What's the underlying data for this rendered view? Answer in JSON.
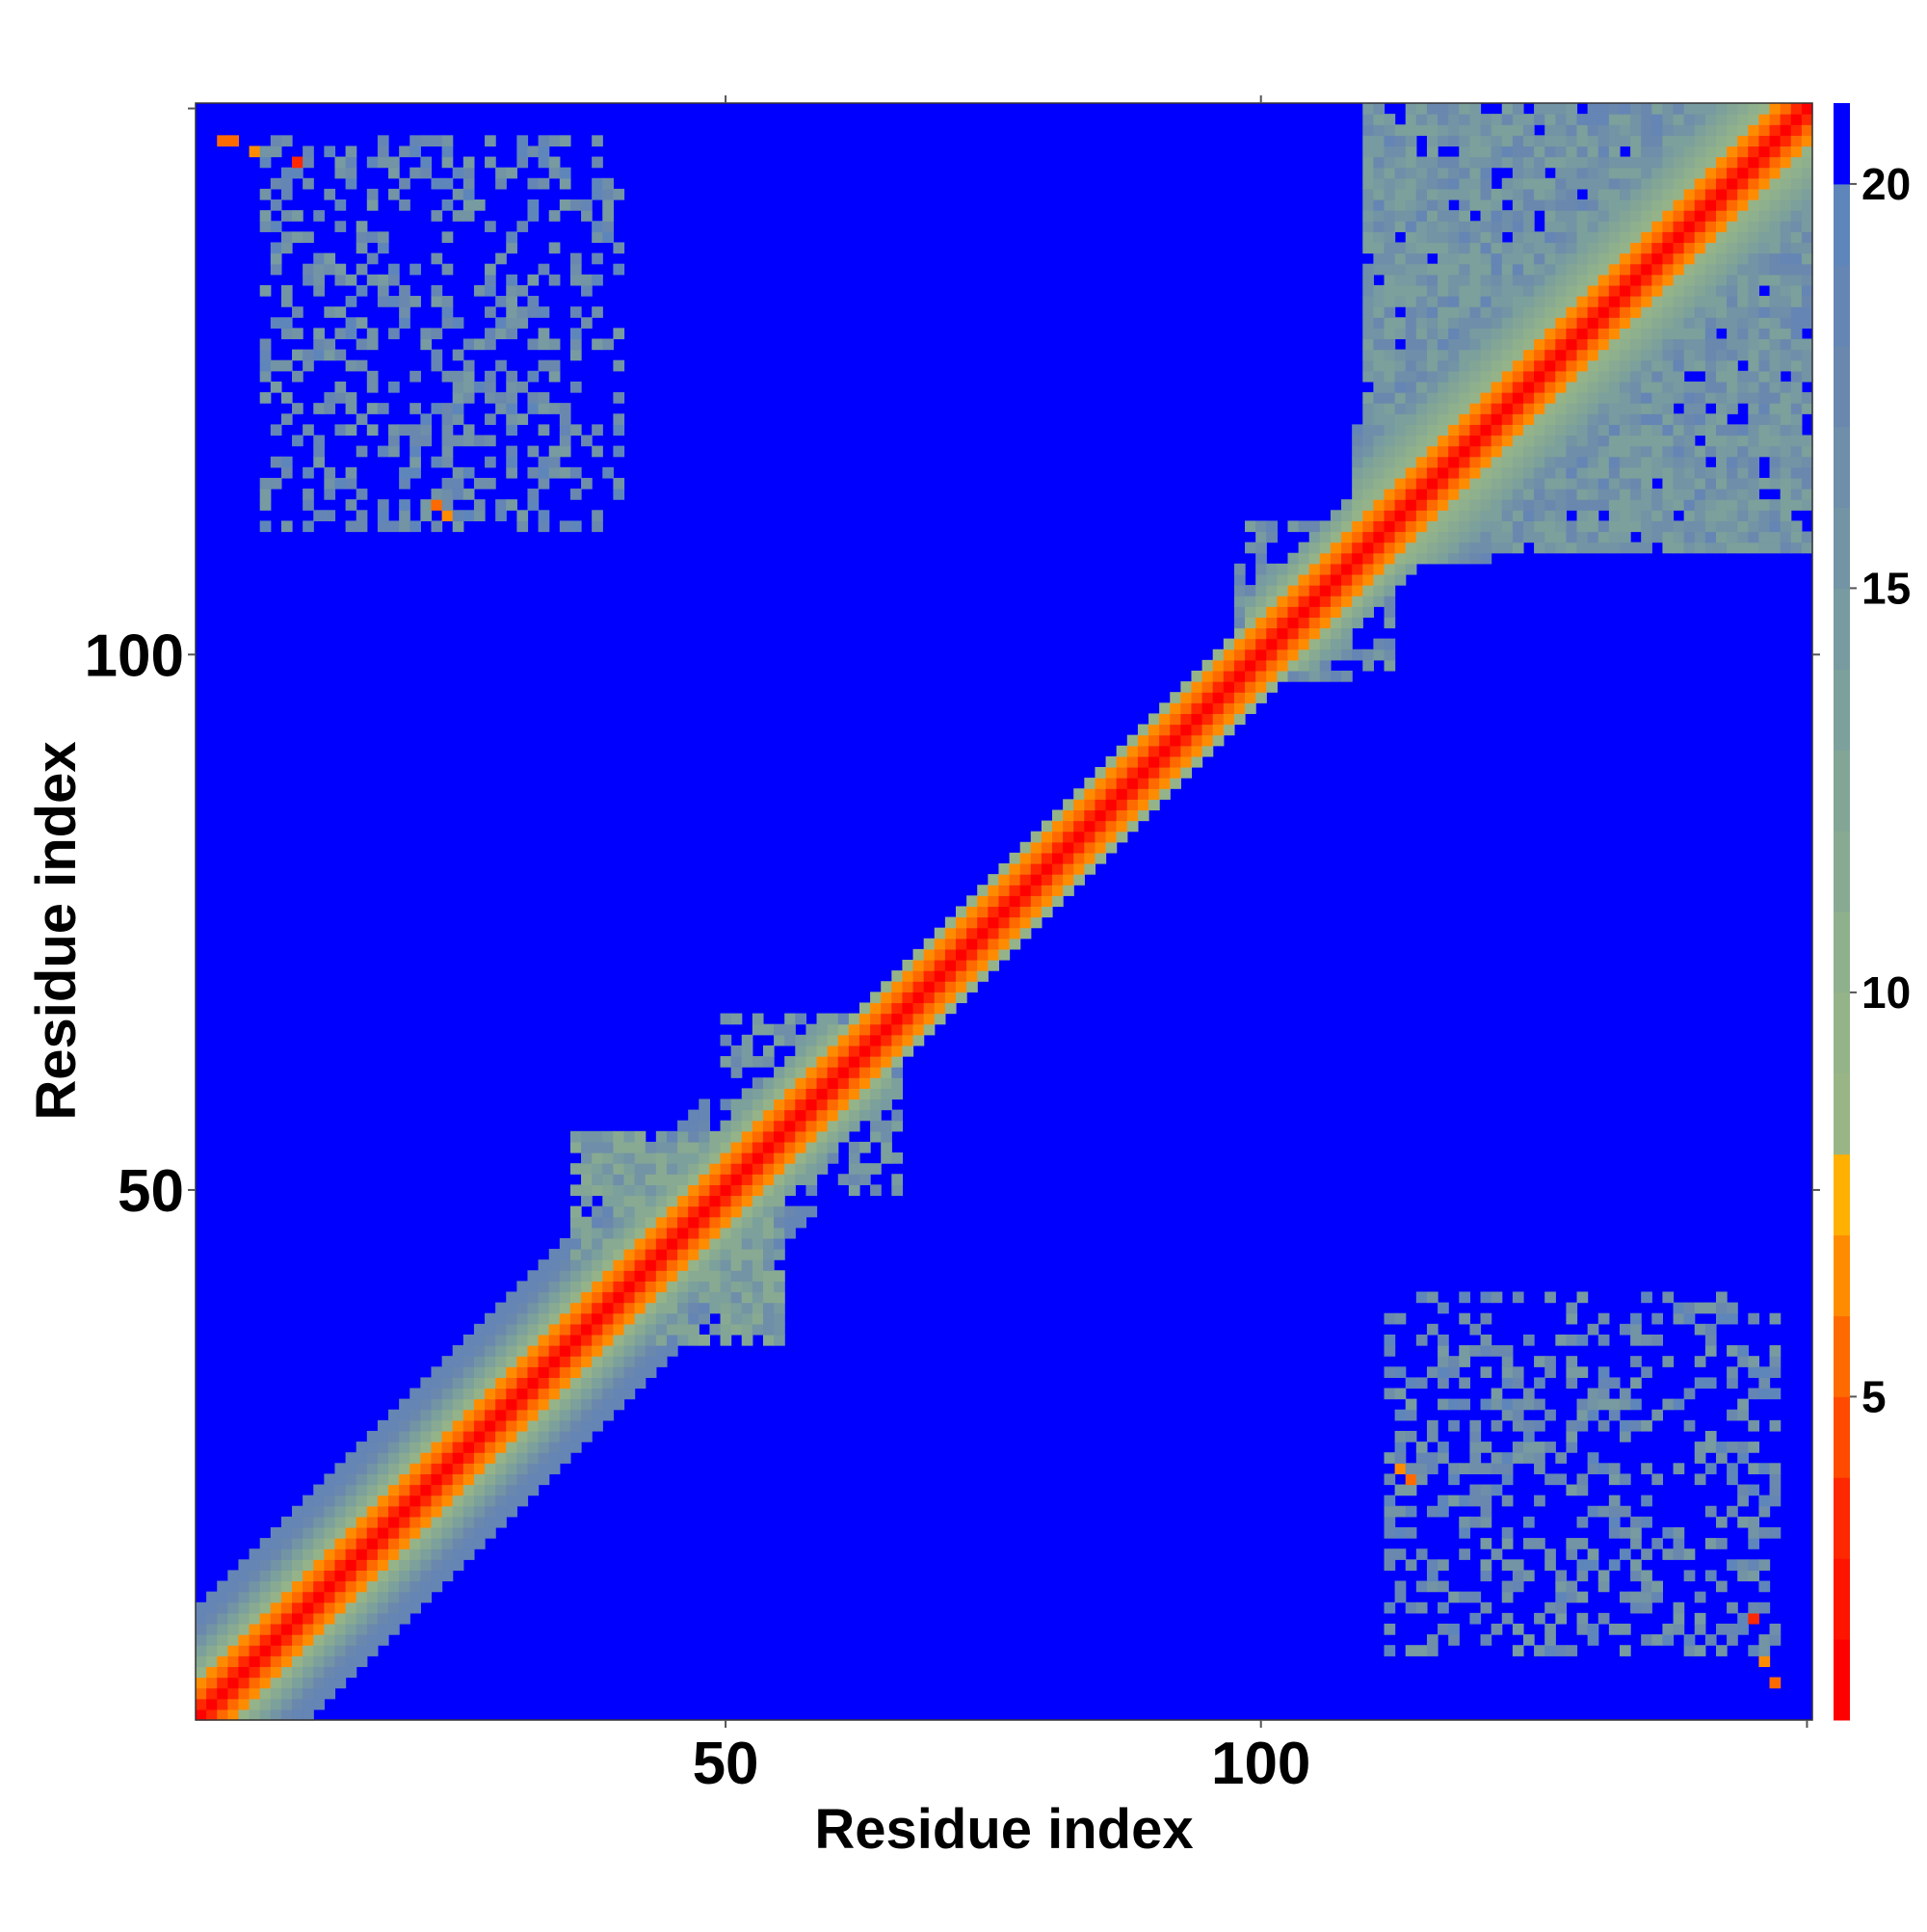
{
  "chart_data": {
    "type": "heatmap",
    "title": "",
    "xlabel": "Residue index",
    "ylabel": "Residue index",
    "n_residues": 151,
    "xlim": [
      1,
      151
    ],
    "ylim": [
      1,
      151
    ],
    "x_ticks": [
      50,
      100
    ],
    "y_ticks": [
      50,
      100
    ],
    "grid": false,
    "colorbar": {
      "position": "right",
      "range": [
        1,
        21
      ],
      "ticks": [
        5,
        10,
        15,
        20
      ],
      "levels": [
        {
          "upper": 2,
          "color": "#ff0000"
        },
        {
          "upper": 3,
          "color": "#ff1400"
        },
        {
          "upper": 4,
          "color": "#ff2800"
        },
        {
          "upper": 5,
          "color": "#ff4a00"
        },
        {
          "upper": 6,
          "color": "#ff6a00"
        },
        {
          "upper": 7,
          "color": "#ff8c00"
        },
        {
          "upper": 8,
          "color": "#ffb000"
        },
        {
          "upper": 9,
          "color": "#9ab585"
        },
        {
          "upper": 10,
          "color": "#95b389"
        },
        {
          "upper": 11,
          "color": "#8fb08d"
        },
        {
          "upper": 12,
          "color": "#88aa92"
        },
        {
          "upper": 13,
          "color": "#82a596"
        },
        {
          "upper": 14,
          "color": "#7ca09b"
        },
        {
          "upper": 15,
          "color": "#779ba0"
        },
        {
          "upper": 16,
          "color": "#7294a4"
        },
        {
          "upper": 17,
          "color": "#6e8eaa"
        },
        {
          "upper": 18,
          "color": "#6a88ae"
        },
        {
          "upper": 19,
          "color": "#6585b4"
        },
        {
          "upper": 20,
          "color": "#5f86ba"
        },
        {
          "upper": 21,
          "color": "#0000ff"
        }
      ]
    },
    "description_of_values": "Symmetric residue-residue distance map; ~0 on diagonal, increasing with |i-j| within a band; cutoff (>20) shown in blue.",
    "diagonal_band": [
      {
        "offset": 0,
        "value": 1.5
      },
      {
        "offset": 1,
        "value": 3.8
      },
      {
        "offset": 2,
        "value": 5.5
      },
      {
        "offset": 3,
        "value": 7.0
      },
      {
        "offset": 4,
        "value": 9.5
      },
      {
        "offset": 5,
        "value": 11.5
      },
      {
        "offset": 6,
        "value": 13.5
      },
      {
        "offset": 7,
        "value": 15.5
      },
      {
        "offset": 8,
        "value": 17.5
      },
      {
        "offset": 9,
        "value": 19.0
      }
    ],
    "band_width_by_segment": [
      {
        "from": 1,
        "to": 48,
        "half_width": 10
      },
      {
        "from": 48,
        "to": 60,
        "half_width": 6
      },
      {
        "from": 60,
        "to": 98,
        "half_width": 4
      },
      {
        "from": 98,
        "to": 108,
        "half_width": 6
      },
      {
        "from": 108,
        "to": 151,
        "half_width": 12
      }
    ],
    "contact_regions": [
      {
        "x_range": [
          110,
          151
        ],
        "y_range": [
          110,
          151
        ],
        "value": 16,
        "density": 0.75
      },
      {
        "x_range": [
          7,
          40
        ],
        "y_range": [
          112,
          148
        ],
        "value": 17,
        "density": 0.18
      },
      {
        "x_range": [
          112,
          148
        ],
        "y_range": [
          7,
          40
        ],
        "value": 17,
        "density": 0.18
      },
      {
        "x_range": [
          36,
          55
        ],
        "y_range": [
          36,
          55
        ],
        "value": 14,
        "density": 0.55
      },
      {
        "x_range": [
          50,
          66
        ],
        "y_range": [
          50,
          66
        ],
        "value": 16,
        "density": 0.3
      },
      {
        "x_range": [
          98,
          112
        ],
        "y_range": [
          98,
          112
        ],
        "value": 16,
        "density": 0.3
      }
    ],
    "close_contacts": [
      {
        "x": 3,
        "y": 148,
        "value": 6
      },
      {
        "x": 4,
        "y": 148,
        "value": 6
      },
      {
        "x": 6,
        "y": 147,
        "value": 7
      },
      {
        "x": 10,
        "y": 146,
        "value": 4
      },
      {
        "x": 23,
        "y": 114,
        "value": 6
      },
      {
        "x": 24,
        "y": 113,
        "value": 7
      },
      {
        "x": 114,
        "y": 23,
        "value": 6
      },
      {
        "x": 113,
        "y": 24,
        "value": 7
      },
      {
        "x": 147,
        "y": 6,
        "value": 7
      },
      {
        "x": 148,
        "y": 4,
        "value": 6
      },
      {
        "x": 146,
        "y": 10,
        "value": 4
      }
    ]
  }
}
